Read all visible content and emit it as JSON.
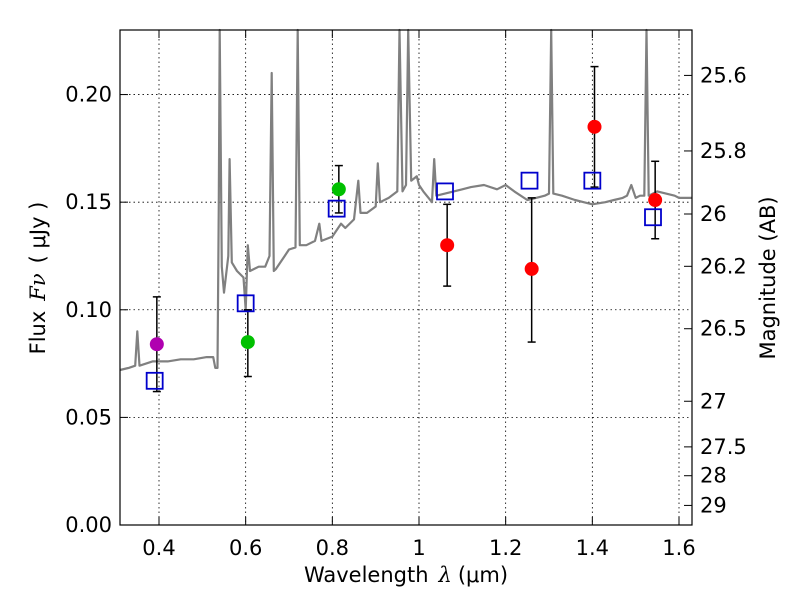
{
  "chart_data": {
    "type": "scatter",
    "xlabel": "Wavelength",
    "xlabel_symbol": "λ",
    "xlabel_unit": "(μm)",
    "ylabel": "Flux",
    "ylabel_symbol": "Fν",
    "ylabel_unit": "( μJy )",
    "y2label": "Magnitude (AB)",
    "xlim": [
      0.31,
      1.63
    ],
    "ylim": [
      0.0,
      0.23
    ],
    "grid": true,
    "x_ticks": [
      0.4,
      0.6,
      0.8,
      1.0,
      1.2,
      1.4,
      1.6
    ],
    "x_tick_labels": [
      "0.4",
      "0.6",
      "0.8",
      "1",
      "1.2",
      "1.4",
      "1.6"
    ],
    "y_ticks": [
      0.0,
      0.05,
      0.1,
      0.15,
      0.2
    ],
    "y_tick_labels": [
      "0.00",
      "0.05",
      "0.10",
      "0.15",
      "0.20"
    ],
    "y2_ticks": [
      {
        "label": "25.6",
        "flux": 0.2089
      },
      {
        "label": "25.8",
        "flux": 0.1738
      },
      {
        "label": "26",
        "flux": 0.1445
      },
      {
        "label": "26.2",
        "flux": 0.1202
      },
      {
        "label": "26.5",
        "flux": 0.0912
      },
      {
        "label": "27",
        "flux": 0.0575
      },
      {
        "label": "27.5",
        "flux": 0.0363
      },
      {
        "label": "28",
        "flux": 0.0229
      },
      {
        "label": "29",
        "flux": 0.0091
      }
    ],
    "colors": {
      "model": "#808080",
      "errorbar": "#000000",
      "model_box": "#0000cc",
      "series_violet": "#b000b0",
      "series_green": "#00c000",
      "series_red": "#ff0000"
    },
    "observed_series": [
      {
        "name": "violet",
        "color": "#b000b0",
        "points": [
          {
            "x": 0.395,
            "y": 0.084,
            "yerr_lo": 0.062,
            "yerr_hi": 0.106
          }
        ]
      },
      {
        "name": "green",
        "color": "#00c000",
        "points": [
          {
            "x": 0.605,
            "y": 0.085,
            "yerr_lo": 0.069,
            "yerr_hi": 0.1
          },
          {
            "x": 0.815,
            "y": 0.156,
            "yerr_lo": 0.145,
            "yerr_hi": 0.167
          }
        ]
      },
      {
        "name": "red",
        "color": "#ff0000",
        "points": [
          {
            "x": 1.065,
            "y": 0.13,
            "yerr_lo": 0.111,
            "yerr_hi": 0.149
          },
          {
            "x": 1.26,
            "y": 0.119,
            "yerr_lo": 0.085,
            "yerr_hi": 0.152
          },
          {
            "x": 1.405,
            "y": 0.185,
            "yerr_lo": 0.157,
            "yerr_hi": 0.213
          },
          {
            "x": 1.545,
            "y": 0.151,
            "yerr_lo": 0.133,
            "yerr_hi": 0.169
          }
        ]
      }
    ],
    "model_photometry": [
      {
        "x": 0.39,
        "y": 0.067
      },
      {
        "x": 0.6,
        "y": 0.103
      },
      {
        "x": 0.81,
        "y": 0.147
      },
      {
        "x": 1.06,
        "y": 0.155
      },
      {
        "x": 1.255,
        "y": 0.16
      },
      {
        "x": 1.4,
        "y": 0.16
      },
      {
        "x": 1.54,
        "y": 0.143
      }
    ],
    "model_spectrum": [
      [
        0.31,
        0.072
      ],
      [
        0.33,
        0.073
      ],
      [
        0.345,
        0.074
      ],
      [
        0.35,
        0.09
      ],
      [
        0.355,
        0.074
      ],
      [
        0.37,
        0.075
      ],
      [
        0.385,
        0.076
      ],
      [
        0.4,
        0.076
      ],
      [
        0.42,
        0.076
      ],
      [
        0.45,
        0.077
      ],
      [
        0.48,
        0.077
      ],
      [
        0.51,
        0.078
      ],
      [
        0.525,
        0.078
      ],
      [
        0.53,
        0.073
      ],
      [
        0.535,
        0.073
      ],
      [
        0.538,
        0.15
      ],
      [
        0.54,
        0.23
      ],
      [
        0.545,
        0.12
      ],
      [
        0.55,
        0.108
      ],
      [
        0.56,
        0.125
      ],
      [
        0.563,
        0.17
      ],
      [
        0.568,
        0.122
      ],
      [
        0.58,
        0.118
      ],
      [
        0.595,
        0.115
      ],
      [
        0.6,
        0.1
      ],
      [
        0.605,
        0.13
      ],
      [
        0.61,
        0.118
      ],
      [
        0.63,
        0.12
      ],
      [
        0.645,
        0.12
      ],
      [
        0.655,
        0.125
      ],
      [
        0.66,
        0.21
      ],
      [
        0.665,
        0.118
      ],
      [
        0.67,
        0.119
      ],
      [
        0.69,
        0.125
      ],
      [
        0.7,
        0.128
      ],
      [
        0.715,
        0.129
      ],
      [
        0.72,
        0.23
      ],
      [
        0.725,
        0.13
      ],
      [
        0.74,
        0.13
      ],
      [
        0.76,
        0.132
      ],
      [
        0.77,
        0.14
      ],
      [
        0.775,
        0.132
      ],
      [
        0.8,
        0.134
      ],
      [
        0.82,
        0.14
      ],
      [
        0.83,
        0.138
      ],
      [
        0.85,
        0.142
      ],
      [
        0.86,
        0.16
      ],
      [
        0.865,
        0.145
      ],
      [
        0.88,
        0.145
      ],
      [
        0.9,
        0.148
      ],
      [
        0.905,
        0.168
      ],
      [
        0.91,
        0.15
      ],
      [
        0.93,
        0.152
      ],
      [
        0.95,
        0.155
      ],
      [
        0.955,
        0.23
      ],
      [
        0.962,
        0.155
      ],
      [
        0.97,
        0.158
      ],
      [
        0.975,
        0.23
      ],
      [
        0.982,
        0.16
      ],
      [
        0.995,
        0.162
      ],
      [
        1.0,
        0.158
      ],
      [
        1.01,
        0.155
      ],
      [
        1.03,
        0.15
      ],
      [
        1.035,
        0.17
      ],
      [
        1.04,
        0.153
      ],
      [
        1.06,
        0.154
      ],
      [
        1.08,
        0.155
      ],
      [
        1.1,
        0.156
      ],
      [
        1.12,
        0.157
      ],
      [
        1.15,
        0.158
      ],
      [
        1.18,
        0.156
      ],
      [
        1.2,
        0.158
      ],
      [
        1.22,
        0.155
      ],
      [
        1.25,
        0.151
      ],
      [
        1.27,
        0.152
      ],
      [
        1.29,
        0.153
      ],
      [
        1.3,
        0.154
      ],
      [
        1.305,
        0.23
      ],
      [
        1.31,
        0.154
      ],
      [
        1.33,
        0.153
      ],
      [
        1.36,
        0.151
      ],
      [
        1.38,
        0.15
      ],
      [
        1.4,
        0.149
      ],
      [
        1.43,
        0.15
      ],
      [
        1.45,
        0.151
      ],
      [
        1.47,
        0.152
      ],
      [
        1.48,
        0.153
      ],
      [
        1.49,
        0.158
      ],
      [
        1.5,
        0.152
      ],
      [
        1.51,
        0.153
      ],
      [
        1.52,
        0.153
      ],
      [
        1.525,
        0.23
      ],
      [
        1.53,
        0.153
      ],
      [
        1.55,
        0.155
      ],
      [
        1.57,
        0.154
      ],
      [
        1.59,
        0.153
      ],
      [
        1.6,
        0.152
      ],
      [
        1.63,
        0.152
      ]
    ]
  }
}
